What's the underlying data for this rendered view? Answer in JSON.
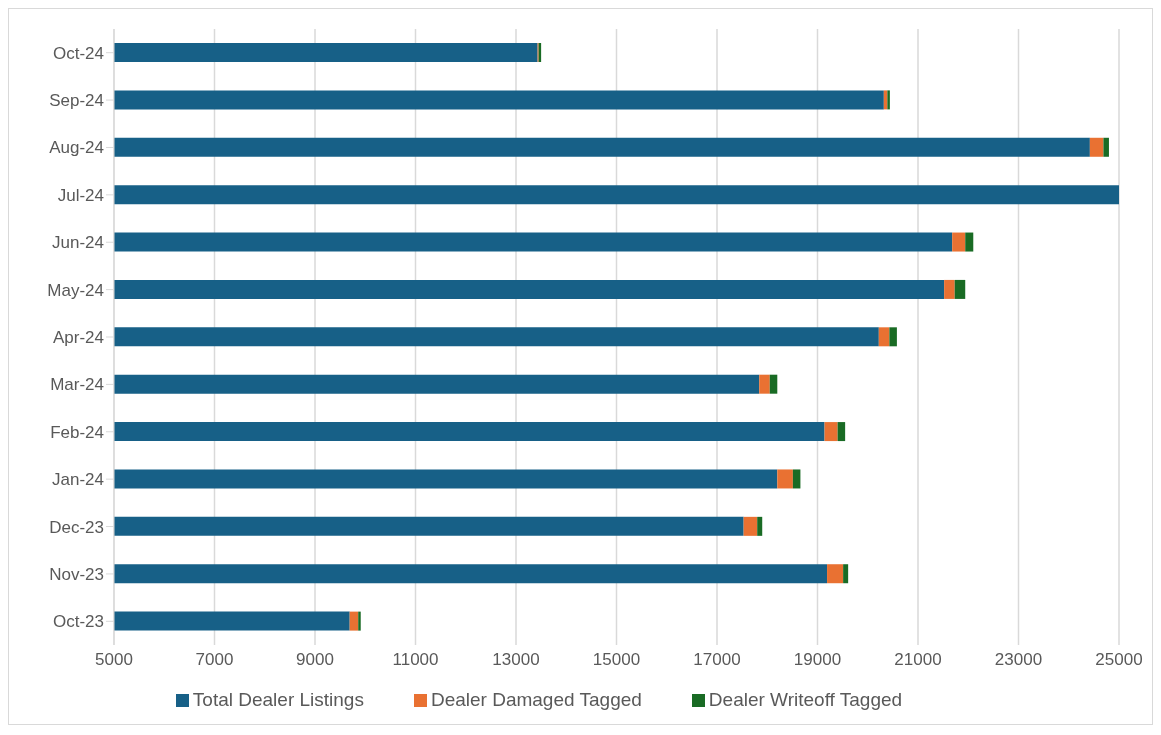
{
  "chart_data": {
    "type": "bar",
    "orientation": "horizontal",
    "stacked": true,
    "categories": [
      "Oct-24",
      "Sep-24",
      "Aug-24",
      "Jul-24",
      "Jun-24",
      "May-24",
      "Apr-24",
      "Mar-24",
      "Feb-24",
      "Jan-24",
      "Dec-23",
      "Nov-23",
      "Oct-23"
    ],
    "series": [
      {
        "name": "Total Dealer Listings",
        "color": "#176087",
        "values": [
          13430,
          20320,
          24420,
          25000,
          21680,
          21520,
          20220,
          17840,
          19140,
          18200,
          17530,
          19190,
          9690
        ]
      },
      {
        "name": "Dealer Damaged Tagged",
        "color": "#e97132",
        "base": [
          13430,
          20320,
          24420,
          null,
          21680,
          21520,
          20220,
          17840,
          19140,
          18200,
          17530,
          19190,
          9690
        ],
        "values": [
          20,
          70,
          270,
          null,
          260,
          210,
          210,
          210,
          260,
          310,
          270,
          320,
          170
        ]
      },
      {
        "name": "Dealer Writeoff Tagged",
        "color": "#196b24",
        "base": [
          13450,
          20390,
          24690,
          null,
          21940,
          21730,
          20430,
          18050,
          19400,
          18510,
          17800,
          19510,
          9860
        ],
        "values": [
          50,
          50,
          110,
          null,
          160,
          210,
          150,
          150,
          150,
          150,
          100,
          100,
          50
        ]
      }
    ],
    "xlim": [
      5000,
      25000
    ],
    "xticks": [
      5000,
      7000,
      9000,
      11000,
      13000,
      15000,
      17000,
      19000,
      21000,
      23000,
      25000
    ],
    "grid": "x",
    "legend": "bottom"
  }
}
